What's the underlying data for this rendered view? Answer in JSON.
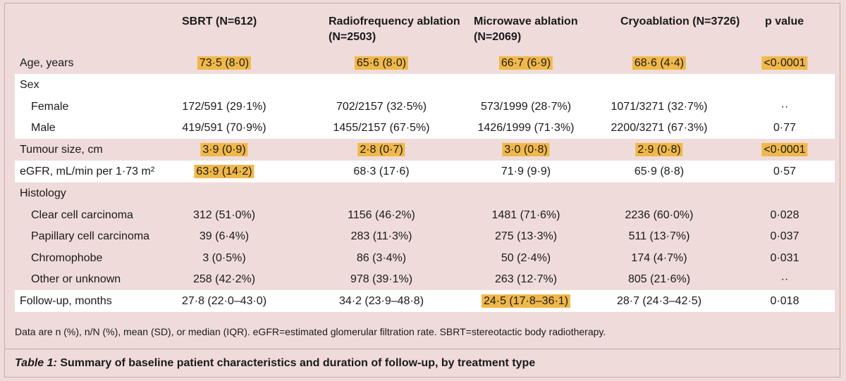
{
  "headers": {
    "sbrt": "SBRT (N=612)",
    "rfa_line1": "Radiofrequency ablation",
    "rfa_line2": "(N=2503)",
    "mwa_line1": "Microwave ablation",
    "mwa_line2": "(N=2069)",
    "cryo": "Cryoablation (N=3726)",
    "pvalue": "p value"
  },
  "rows": [
    {
      "label": "Age, years",
      "sbrt": "73·5 (8·0)",
      "rfa": "65·6 (8·0)",
      "mwa": "66·7 (6·9)",
      "cryo": "68·6 (4·4)",
      "p": "<0·0001"
    },
    {
      "label": "Sex"
    },
    {
      "label": "Female",
      "sbrt": "172/591 (29·1%)",
      "rfa": "702/2157 (32·5%)",
      "mwa": "573/1999 (28·7%)",
      "cryo": "1071/3271 (32·7%)",
      "p": "··"
    },
    {
      "label": "Male",
      "sbrt": "419/591 (70·9%)",
      "rfa": "1455/2157 (67·5%)",
      "mwa": "1426/1999 (71·3%)",
      "cryo": "2200/3271 (67·3%)",
      "p": "0·77"
    },
    {
      "label": "Tumour size, cm",
      "sbrt": "3·9 (0·9)",
      "rfa": "2·8 (0·7)",
      "mwa": "3·0 (0·8)",
      "cryo": "2·9 (0·8)",
      "p": "<0·0001"
    },
    {
      "label": "eGFR, mL/min per 1·73 m²",
      "sbrt": "63·9 (14·2)",
      "rfa": "68·3 (17·6)",
      "mwa": "71·9 (9·9)",
      "cryo": "65·9 (8·8)",
      "p": "0·57"
    },
    {
      "label": "Histology"
    },
    {
      "label": "Clear cell carcinoma",
      "sbrt": "312 (51·0%)",
      "rfa": "1156 (46·2%)",
      "mwa": "1481 (71·6%)",
      "cryo": "2236 (60·0%)",
      "p": "0·028"
    },
    {
      "label": "Papillary cell carcinoma",
      "sbrt": "39 (6·4%)",
      "rfa": "283 (11·3%)",
      "mwa": "275 (13·3%)",
      "cryo": "511 (13·7%)",
      "p": "0·037"
    },
    {
      "label": "Chromophobe",
      "sbrt": "3 (0·5%)",
      "rfa": "86 (3·4%)",
      "mwa": "50 (2·4%)",
      "cryo": "174 (4·7%)",
      "p": "0·031"
    },
    {
      "label": "Other or unknown",
      "sbrt": "258 (42·2%)",
      "rfa": "978 (39·1%)",
      "mwa": "263 (12·7%)",
      "cryo": "805 (21·6%)",
      "p": "··"
    },
    {
      "label": "Follow-up, months",
      "sbrt": "27·8 (22·0–43·0)",
      "rfa": "34·2 (23·9–48·8)",
      "mwa": "24·5 (17·8–36·1)",
      "cryo": "28·7 (24·3–42·5)",
      "p": "0·018"
    }
  ],
  "footnote": "Data are n (%), n/N (%), mean (SD), or median (IQR). eGFR=estimated glomerular filtration rate. SBRT=stereotactic body radiotherapy.",
  "caption": {
    "number": "Table 1:",
    "text": " Summary of baseline patient characteristics and duration of follow-up, by treatment type"
  },
  "colors": {
    "background": "#efdcda",
    "white_band": "#ffffff",
    "highlight": "#f0b84a"
  }
}
